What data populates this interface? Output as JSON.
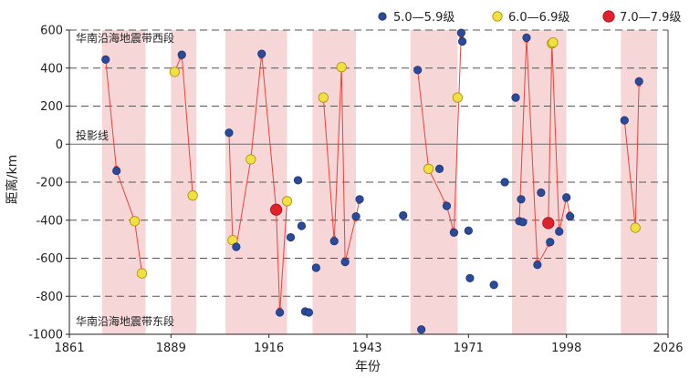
{
  "chart_data": {
    "type": "scatter",
    "xlabel": "年份",
    "ylabel": "距离/km",
    "xlim": [
      1861,
      2026
    ],
    "ylim": [
      -1000,
      600
    ],
    "xticks": [
      1861,
      1889,
      1916,
      1943,
      1971,
      1998,
      2026
    ],
    "yticks": [
      600,
      400,
      200,
      0,
      -200,
      -400,
      -600,
      -800,
      -1000
    ],
    "annotations": {
      "west": "华南沿海地震带西段",
      "east": "华南沿海地震带东段",
      "baseline": "投影线"
    },
    "legend": [
      {
        "name": "5.0—5.9级",
        "color": "#2a4a9a"
      },
      {
        "name": "6.0—6.9级",
        "color": "#f2e040"
      },
      {
        "name": "7.0—7.9级",
        "color": "#e0202a"
      }
    ],
    "active_periods": [
      [
        1870,
        1882
      ],
      [
        1889,
        1896
      ],
      [
        1904,
        1921
      ],
      [
        1928,
        1940
      ],
      [
        1955,
        1968
      ],
      [
        1983,
        1998
      ],
      [
        2013,
        2023
      ]
    ],
    "points": [
      {
        "x": 1871,
        "y": 445,
        "mag": "5"
      },
      {
        "x": 1874,
        "y": -140,
        "mag": "5"
      },
      {
        "x": 1879,
        "y": -405,
        "mag": "6"
      },
      {
        "x": 1881,
        "y": -680,
        "mag": "6"
      },
      {
        "x": 1890,
        "y": 380,
        "mag": "6"
      },
      {
        "x": 1892,
        "y": 470,
        "mag": "5"
      },
      {
        "x": 1895,
        "y": -270,
        "mag": "6"
      },
      {
        "x": 1905,
        "y": 60,
        "mag": "5"
      },
      {
        "x": 1906,
        "y": -505,
        "mag": "6"
      },
      {
        "x": 1907,
        "y": -540,
        "mag": "5"
      },
      {
        "x": 1911,
        "y": -80,
        "mag": "6"
      },
      {
        "x": 1914,
        "y": 475,
        "mag": "5"
      },
      {
        "x": 1918,
        "y": -345,
        "mag": "7"
      },
      {
        "x": 1919,
        "y": -885,
        "mag": "5"
      },
      {
        "x": 1921,
        "y": -300,
        "mag": "6"
      },
      {
        "x": 1922,
        "y": -490,
        "mag": "5"
      },
      {
        "x": 1924,
        "y": -190,
        "mag": "5"
      },
      {
        "x": 1925,
        "y": -430,
        "mag": "5"
      },
      {
        "x": 1926,
        "y": -880,
        "mag": "5"
      },
      {
        "x": 1927,
        "y": -885,
        "mag": "5"
      },
      {
        "x": 1929,
        "y": -650,
        "mag": "5"
      },
      {
        "x": 1931,
        "y": 245,
        "mag": "6"
      },
      {
        "x": 1934,
        "y": -510,
        "mag": "5"
      },
      {
        "x": 1936,
        "y": 405,
        "mag": "6"
      },
      {
        "x": 1937,
        "y": -620,
        "mag": "5"
      },
      {
        "x": 1940,
        "y": -380,
        "mag": "5"
      },
      {
        "x": 1941,
        "y": -290,
        "mag": "5"
      },
      {
        "x": 1953,
        "y": -375,
        "mag": "5"
      },
      {
        "x": 1957,
        "y": 390,
        "mag": "5"
      },
      {
        "x": 1958,
        "y": -975,
        "mag": "5"
      },
      {
        "x": 1960,
        "y": -130,
        "mag": "6"
      },
      {
        "x": 1963,
        "y": -130,
        "mag": "5"
      },
      {
        "x": 1965,
        "y": -325,
        "mag": "5"
      },
      {
        "x": 1967,
        "y": -465,
        "mag": "5"
      },
      {
        "x": 1968,
        "y": 245,
        "mag": "6"
      },
      {
        "x": 1969,
        "y": 585,
        "mag": "5"
      },
      {
        "x": 1969.3,
        "y": 540,
        "mag": "5"
      },
      {
        "x": 1971,
        "y": -455,
        "mag": "5"
      },
      {
        "x": 1971.4,
        "y": -705,
        "mag": "5"
      },
      {
        "x": 1978,
        "y": -740,
        "mag": "5"
      },
      {
        "x": 1981,
        "y": -200,
        "mag": "5"
      },
      {
        "x": 1984,
        "y": 245,
        "mag": "5"
      },
      {
        "x": 1985,
        "y": -405,
        "mag": "5"
      },
      {
        "x": 1985.5,
        "y": -290,
        "mag": "5"
      },
      {
        "x": 1986,
        "y": -410,
        "mag": "5"
      },
      {
        "x": 1987,
        "y": 560,
        "mag": "5"
      },
      {
        "x": 1990,
        "y": -635,
        "mag": "5"
      },
      {
        "x": 1991,
        "y": -255,
        "mag": "5"
      },
      {
        "x": 1993,
        "y": -415,
        "mag": "7"
      },
      {
        "x": 1993.5,
        "y": -515,
        "mag": "5"
      },
      {
        "x": 1994,
        "y": 530,
        "mag": "6"
      },
      {
        "x": 1994.3,
        "y": 535,
        "mag": "6"
      },
      {
        "x": 1996,
        "y": -460,
        "mag": "5"
      },
      {
        "x": 1998,
        "y": -280,
        "mag": "5"
      },
      {
        "x": 1999,
        "y": -380,
        "mag": "5"
      },
      {
        "x": 2014,
        "y": 125,
        "mag": "5"
      },
      {
        "x": 2017,
        "y": -440,
        "mag": "6"
      },
      {
        "x": 2018,
        "y": 330,
        "mag": "5"
      }
    ],
    "connections": [
      [
        1871,
        445,
        1874,
        -140
      ],
      [
        1874,
        -140,
        1879,
        -405
      ],
      [
        1879,
        -405,
        1881,
        -680
      ],
      [
        1890,
        380,
        1892,
        470
      ],
      [
        1892,
        470,
        1895,
        -270
      ],
      [
        1905,
        60,
        1906,
        -505
      ],
      [
        1906,
        -505,
        1907,
        -540
      ],
      [
        1907,
        -540,
        1911,
        -80
      ],
      [
        1911,
        -80,
        1914,
        475
      ],
      [
        1914,
        475,
        1918,
        -345
      ],
      [
        1918,
        -345,
        1919,
        -885
      ],
      [
        1919,
        -885,
        1921,
        -300
      ],
      [
        1931,
        245,
        1934,
        -510
      ],
      [
        1934,
        -510,
        1936,
        405
      ],
      [
        1936,
        405,
        1937,
        -620
      ],
      [
        1937,
        -620,
        1940,
        -380
      ],
      [
        1940,
        -380,
        1941,
        -290
      ],
      [
        1957,
        390,
        1960,
        -130
      ],
      [
        1960,
        -130,
        1965,
        -325
      ],
      [
        1965,
        -325,
        1967,
        -465
      ],
      [
        1967,
        -465,
        1969,
        585
      ],
      [
        1969,
        585,
        1969.3,
        540
      ],
      [
        1985,
        -405,
        1987,
        560
      ],
      [
        1987,
        560,
        1990,
        -635
      ],
      [
        1990,
        -635,
        1993.5,
        -515
      ],
      [
        1993,
        -415,
        1994,
        530
      ],
      [
        1994,
        530,
        1996,
        -460
      ],
      [
        1996,
        -460,
        1998,
        -280
      ],
      [
        1998,
        -280,
        1999,
        -380
      ],
      [
        2014,
        125,
        2017,
        -440
      ],
      [
        2017,
        -440,
        2018,
        330
      ]
    ]
  }
}
